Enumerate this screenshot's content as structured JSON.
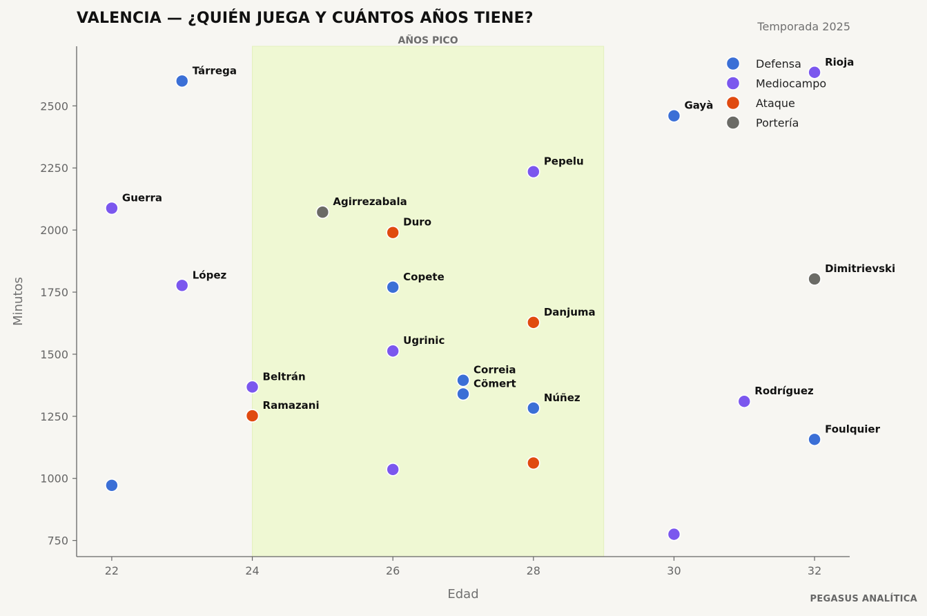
{
  "header": {
    "title": "VALENCIA — ¿QUIÉN JUEGA Y CUÁNTOS AÑOS TIENE?",
    "season": "Temporada 2025",
    "brand": "PEGASUS ANALÍTICA"
  },
  "chart_data": {
    "type": "scatter",
    "title": "VALENCIA — ¿QUIÉN JUEGA Y CUÁNTOS AÑOS TIENE?",
    "subtitle": "Temporada 2025",
    "xlabel": "Edad",
    "ylabel": "Minutos",
    "xlim": [
      21.5,
      32.5
    ],
    "ylim": [
      685,
      2740
    ],
    "xticks": [
      22,
      24,
      26,
      28,
      30,
      32
    ],
    "yticks": [
      750,
      1000,
      1250,
      1500,
      1750,
      2000,
      2250,
      2500
    ],
    "grid": false,
    "legend_position": "top-right",
    "band": {
      "label": "AÑOS PICO",
      "x_from": 24,
      "x_to": 29,
      "color": "#eff8d3"
    },
    "colors": {
      "Defensa": "#3b6fd6",
      "Mediocampo": "#7b57ee",
      "Ataque": "#e04a10",
      "Portería": "#6b6b66"
    },
    "legend": [
      "Defensa",
      "Mediocampo",
      "Ataque",
      "Portería"
    ],
    "points": [
      {
        "name": "Tárrega",
        "x": 23,
        "y": 2600,
        "group": "Defensa"
      },
      {
        "name": "Rioja",
        "x": 32,
        "y": 2635,
        "group": "Mediocampo"
      },
      {
        "name": "Gayà",
        "x": 30,
        "y": 2460,
        "group": "Defensa"
      },
      {
        "name": "Pepelu",
        "x": 28,
        "y": 2235,
        "group": "Mediocampo"
      },
      {
        "name": "Guerra",
        "x": 22,
        "y": 2088,
        "group": "Mediocampo"
      },
      {
        "name": "Agirrezabala",
        "x": 25,
        "y": 2072,
        "group": "Portería"
      },
      {
        "name": "Duro",
        "x": 26,
        "y": 1990,
        "group": "Ataque"
      },
      {
        "name": "Dimitrievski",
        "x": 32,
        "y": 1803,
        "group": "Portería"
      },
      {
        "name": "López",
        "x": 23,
        "y": 1777,
        "group": "Mediocampo"
      },
      {
        "name": "Copete",
        "x": 26,
        "y": 1770,
        "group": "Defensa"
      },
      {
        "name": "Danjuma",
        "x": 28,
        "y": 1628,
        "group": "Ataque"
      },
      {
        "name": "Ugrinic",
        "x": 26,
        "y": 1513,
        "group": "Mediocampo"
      },
      {
        "name": "Correia",
        "x": 27,
        "y": 1395,
        "group": "Defensa"
      },
      {
        "name": "Beltrán",
        "x": 24,
        "y": 1368,
        "group": "Mediocampo"
      },
      {
        "name": "Cömert",
        "x": 27,
        "y": 1340,
        "group": "Defensa"
      },
      {
        "name": "Rodríguez",
        "x": 31,
        "y": 1310,
        "group": "Mediocampo"
      },
      {
        "name": "Núñez",
        "x": 28,
        "y": 1283,
        "group": "Defensa"
      },
      {
        "name": "Ramazani",
        "x": 24,
        "y": 1252,
        "group": "Ataque"
      },
      {
        "name": "Foulquier",
        "x": 32,
        "y": 1157,
        "group": "Defensa"
      },
      {
        "name": "",
        "x": 28,
        "y": 1062,
        "group": "Ataque"
      },
      {
        "name": "",
        "x": 26,
        "y": 1036,
        "group": "Mediocampo"
      },
      {
        "name": "",
        "x": 22,
        "y": 972,
        "group": "Defensa"
      },
      {
        "name": "",
        "x": 30,
        "y": 775,
        "group": "Mediocampo"
      }
    ]
  }
}
